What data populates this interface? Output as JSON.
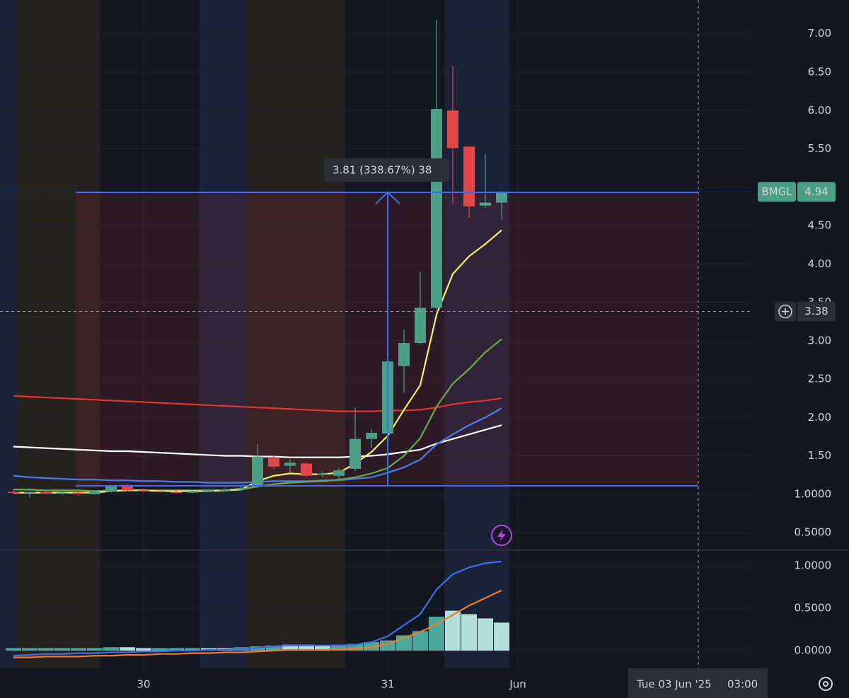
{
  "chart_data": [
    {
      "type": "candlestick",
      "symbol": "BMGL",
      "categories": [
        null,
        null,
        null,
        null,
        null,
        null,
        null,
        null,
        "30",
        null,
        null,
        null,
        null,
        null,
        null,
        null,
        null,
        null,
        null,
        null,
        null,
        null,
        null,
        "31",
        null,
        null,
        null,
        null,
        null,
        null,
        null,
        "Jun"
      ],
      "open": [
        1.03,
        1.02,
        1.03,
        1.01,
        1.02,
        1.0,
        1.03,
        1.12,
        1.05,
        1.04,
        1.03,
        1.02,
        1.04,
        1.05,
        1.06,
        1.1,
        1.47,
        1.37,
        1.4,
        1.25,
        1.24,
        1.33,
        1.72,
        1.79,
        2.67,
        2.97,
        3.43,
        6.0,
        5.53,
        4.76,
        4.8,
        null
      ],
      "high": [
        1.05,
        1.04,
        1.04,
        1.03,
        1.03,
        1.05,
        1.12,
        1.13,
        1.06,
        1.05,
        1.05,
        1.05,
        1.06,
        1.07,
        1.1,
        1.65,
        1.5,
        1.46,
        1.42,
        1.3,
        1.34,
        2.13,
        1.85,
        2.74,
        3.15,
        3.9,
        7.18,
        6.58,
        5.53,
        5.43,
        4.95,
        null
      ],
      "low": [
        1.0,
        0.96,
        1.0,
        0.99,
        0.98,
        0.99,
        1.02,
        1.04,
        1.02,
        1.02,
        1.01,
        1.01,
        1.03,
        1.04,
        1.05,
        1.08,
        1.33,
        1.28,
        1.22,
        1.22,
        1.2,
        1.3,
        1.6,
        1.76,
        2.32,
        2.95,
        3.4,
        4.78,
        4.6,
        4.73,
        4.58,
        null
      ],
      "close": [
        1.02,
        1.03,
        1.01,
        1.02,
        1.0,
        1.03,
        1.11,
        1.05,
        1.04,
        1.03,
        1.02,
        1.04,
        1.05,
        1.06,
        1.08,
        1.49,
        1.36,
        1.41,
        1.24,
        1.27,
        1.31,
        1.72,
        1.8,
        2.73,
        2.97,
        3.43,
        6.02,
        5.51,
        4.75,
        4.8,
        4.94,
        null
      ],
      "up_color": "#4c9e87",
      "down_color": "#e0474c",
      "series": [
        {
          "color": "#e0362c",
          "values": [
            2.28,
            2.27,
            2.26,
            2.25,
            2.24,
            2.23,
            2.22,
            2.21,
            2.2,
            2.19,
            2.18,
            2.17,
            2.16,
            2.15,
            2.14,
            2.13,
            2.12,
            2.11,
            2.1,
            2.09,
            2.08,
            2.08,
            2.08,
            2.09,
            2.09,
            2.1,
            2.13,
            2.17,
            2.2,
            2.22,
            2.25,
            null
          ]
        },
        {
          "color": "#ffffff",
          "values": [
            1.62,
            1.61,
            1.6,
            1.59,
            1.58,
            1.57,
            1.56,
            1.56,
            1.55,
            1.54,
            1.53,
            1.52,
            1.51,
            1.5,
            1.5,
            1.49,
            1.49,
            1.48,
            1.48,
            1.48,
            1.48,
            1.49,
            1.5,
            1.52,
            1.55,
            1.58,
            1.66,
            1.72,
            1.78,
            1.84,
            1.9,
            null
          ]
        },
        {
          "color": "#4a7cf0",
          "values": [
            1.24,
            1.22,
            1.21,
            1.2,
            1.19,
            1.19,
            1.18,
            1.18,
            1.17,
            1.17,
            1.16,
            1.16,
            1.15,
            1.15,
            1.15,
            1.16,
            1.17,
            1.17,
            1.17,
            1.18,
            1.18,
            1.2,
            1.22,
            1.28,
            1.35,
            1.45,
            1.65,
            1.78,
            1.9,
            2.0,
            2.12,
            null
          ]
        },
        {
          "color": "#6aa84f",
          "values": [
            1.06,
            1.06,
            1.05,
            1.05,
            1.05,
            1.04,
            1.05,
            1.05,
            1.05,
            1.05,
            1.05,
            1.05,
            1.05,
            1.05,
            1.06,
            1.1,
            1.13,
            1.15,
            1.16,
            1.17,
            1.19,
            1.22,
            1.27,
            1.34,
            1.5,
            1.73,
            2.14,
            2.44,
            2.63,
            2.85,
            3.02,
            null
          ]
        },
        {
          "color": "#f5f06a",
          "values": [
            1.02,
            1.02,
            1.02,
            1.02,
            1.02,
            1.02,
            1.04,
            1.05,
            1.05,
            1.04,
            1.04,
            1.04,
            1.04,
            1.05,
            1.06,
            1.17,
            1.24,
            1.27,
            1.26,
            1.26,
            1.28,
            1.4,
            1.55,
            1.76,
            2.1,
            2.42,
            3.34,
            3.87,
            4.1,
            4.26,
            4.44,
            null
          ]
        }
      ],
      "ylim": [
        0.27,
        7.44
      ],
      "yticks": [
        {
          "value": 7,
          "label": "7.00"
        },
        {
          "value": 6.5,
          "label": "6.50"
        },
        {
          "value": 6,
          "label": "6.00"
        },
        {
          "value": 5.5,
          "label": "5.50"
        },
        {
          "value": 4.5,
          "label": "4.50"
        },
        {
          "value": 4,
          "label": "4.00"
        },
        {
          "value": 3.5,
          "label": "3.50"
        },
        {
          "value": 3,
          "label": "3.00"
        },
        {
          "value": 2.5,
          "label": "2.50"
        },
        {
          "value": 2,
          "label": "2.00"
        },
        {
          "value": 1.5,
          "label": "1.50"
        },
        {
          "value": 1,
          "label": "1.0000"
        },
        {
          "value": 0.5,
          "label": "0.5000"
        }
      ],
      "grid": true,
      "last_price": 4.94,
      "crosshair_price": 3.38,
      "crosshair_date": "Tue 03 Jun '25",
      "crosshair_time": "03:00",
      "annotation": "3.81 (338.67%) 38"
    },
    {
      "type": "histogram",
      "values": [
        0.03,
        0.03,
        0.03,
        0.03,
        0.03,
        0.03,
        0.04,
        0.04,
        0.03,
        0.03,
        0.03,
        0.03,
        0.03,
        0.03,
        0.04,
        0.05,
        0.06,
        0.07,
        0.07,
        0.06,
        0.07,
        0.08,
        0.1,
        0.12,
        0.18,
        0.23,
        0.4,
        0.47,
        0.43,
        0.38,
        0.33,
        null
      ],
      "colors": [
        "#4ea89a",
        "#4ea89a",
        "#4ea89a",
        "#4ea89a",
        "#4ea89a",
        "#4ea89a",
        "#4ea89a",
        "#b2dfdb",
        "#b2dfdb",
        "#4ea89a",
        "#4ea89a",
        "#4ea89a",
        "#b2dfdb",
        "#b2dfdb",
        "#4ea89a",
        "#4ea89a",
        "#4ea89a",
        "#b2dfdb",
        "#b2dfdb",
        "#b2dfdb",
        "#4ea89a",
        "#4ea89a",
        "#4ea89a",
        "#4ea89a",
        "#4ea89a",
        "#4ea89a",
        "#4ea89a",
        "#b2dfdb",
        "#b2dfdb",
        "#b2dfdb",
        "#b2dfdb",
        null
      ],
      "series": [
        {
          "color": "#3f6fe8",
          "values": [
            -0.06,
            -0.05,
            -0.04,
            -0.04,
            -0.03,
            -0.03,
            -0.02,
            -0.02,
            -0.01,
            -0.01,
            0.0,
            0.0,
            0.01,
            0.01,
            0.02,
            0.03,
            0.05,
            0.06,
            0.06,
            0.06,
            0.06,
            0.07,
            0.1,
            0.17,
            0.3,
            0.43,
            0.72,
            0.9,
            0.98,
            1.03,
            1.05,
            null
          ]
        },
        {
          "color": "#f07a32",
          "values": [
            -0.08,
            -0.08,
            -0.07,
            -0.07,
            -0.07,
            -0.06,
            -0.06,
            -0.05,
            -0.05,
            -0.04,
            -0.04,
            -0.03,
            -0.03,
            -0.02,
            -0.02,
            -0.01,
            0.0,
            0.01,
            0.01,
            0.01,
            0.02,
            0.02,
            0.04,
            0.08,
            0.15,
            0.22,
            0.31,
            0.42,
            0.53,
            0.62,
            0.71,
            null
          ]
        }
      ],
      "ylim": [
        -0.208,
        1.183
      ],
      "yticks": [
        {
          "value": 1,
          "label": "1.0000"
        },
        {
          "value": 0.5,
          "label": "0.5000"
        },
        {
          "value": 0,
          "label": "0.0000"
        }
      ],
      "grid": true
    }
  ]
}
